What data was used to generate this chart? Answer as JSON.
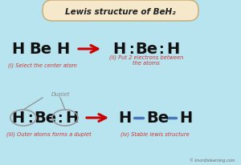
{
  "title": "Lewis structure of BeH₂",
  "bg_color": "#b8e4f0",
  "title_bg": "#f5e8cb",
  "title_border": "#c8a96e",
  "panel1_label": "(i) Select the center atom",
  "panel2_label": "(ii) Put 2 electrons between\nthe atoms",
  "panel3_duplet": "Duplet",
  "panel3_label": "(iii) Outer atoms forms a duplet",
  "panel4_label": "(iv) Stable lewis structure",
  "watermark": "© knordislearning.com",
  "arrow_color": "#cc0000",
  "label_color": "#cc3333",
  "atom_color": "#111111",
  "dot_color": "#111111",
  "bond_color": "#4477bb",
  "ellipse_color": "#999999",
  "duplet_color": "#888888"
}
